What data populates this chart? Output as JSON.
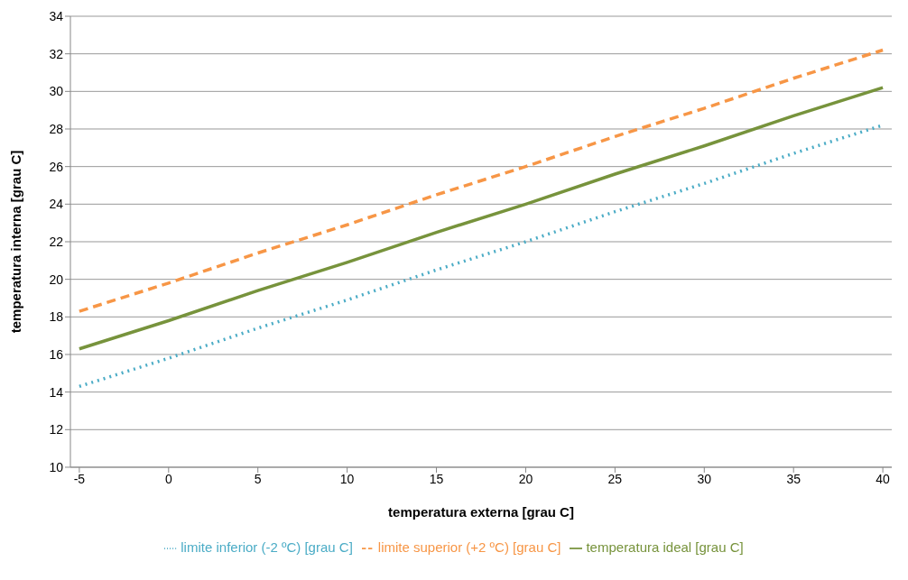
{
  "chart_data": {
    "type": "line",
    "xlabel": "temperatura externa [grau C]",
    "ylabel": "temperatura interna [grau C]",
    "x": [
      -5,
      0,
      5,
      10,
      15,
      20,
      25,
      30,
      35,
      40
    ],
    "xlim": [
      -5.5,
      40.5
    ],
    "xticks": [
      -5,
      0,
      5,
      10,
      15,
      20,
      25,
      30,
      35,
      40
    ],
    "ylim": [
      10,
      34
    ],
    "yticks": [
      10,
      12,
      14,
      16,
      18,
      20,
      22,
      24,
      26,
      28,
      30,
      32,
      34
    ],
    "grid": "y",
    "legend": "bottom",
    "marker": "none",
    "series": [
      {
        "name": "temperatura ideal [grau C]",
        "color": "#77933c",
        "line_style": "solid",
        "values": [
          16.3,
          17.8,
          19.4,
          20.9,
          22.5,
          24.0,
          25.6,
          27.1,
          28.7,
          30.2
        ]
      },
      {
        "name": "limite inferior (-2 ºC) [grau C]",
        "color": "#4bacc6",
        "line_style": "dotted",
        "values": [
          14.3,
          15.8,
          17.4,
          18.9,
          20.5,
          22.0,
          23.6,
          25.1,
          26.7,
          28.2
        ]
      },
      {
        "name": "limite superior (+2 ºC) [grau C]",
        "color": "#f79646",
        "line_style": "dashed",
        "values": [
          18.3,
          19.8,
          21.4,
          22.9,
          24.5,
          26.0,
          27.6,
          29.1,
          30.7,
          32.2
        ]
      }
    ]
  }
}
